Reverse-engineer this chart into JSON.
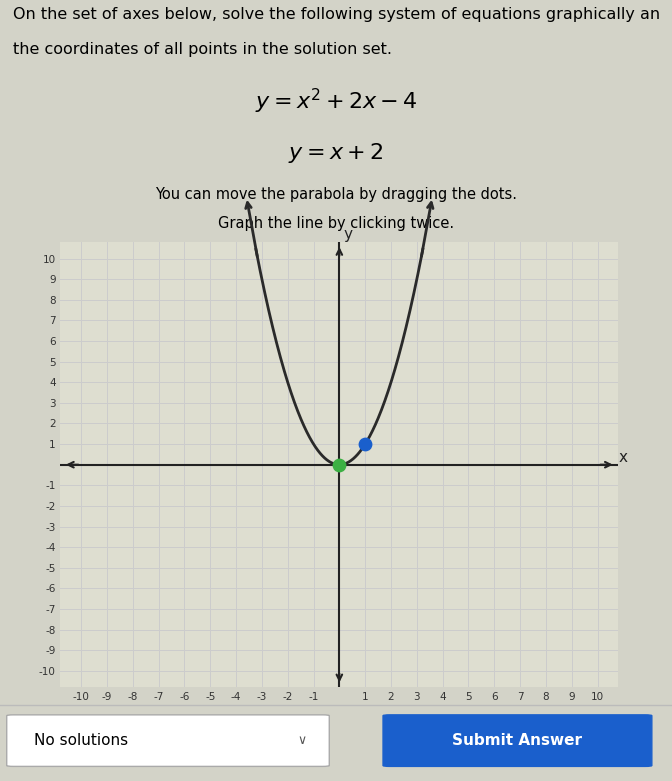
{
  "xlim": [
    -10,
    10
  ],
  "ylim": [
    -10,
    10
  ],
  "grid_color": "#cccccc",
  "bg_color": "#deded0",
  "parabola_color": "#2a2a2a",
  "green_dot": [
    0,
    0
  ],
  "blue_dot": [
    1,
    1
  ],
  "green_dot_color": "#3cb043",
  "blue_dot_color": "#1a5fcc",
  "dot_size": 80,
  "axis_color": "#222222",
  "no_solutions_text": "No solutions",
  "submit_text": "Submit Answer",
  "submit_bg": "#1a5fcc",
  "submit_text_color": "#ffffff",
  "outer_bg": "#d3d3c8",
  "line1_top": "On the set of axes below, solve the following system of equations graphically an",
  "line1_bot": "the coordinates of all points in the solution set.",
  "eq1": "$y = x^2 + 2x - 4$",
  "eq2": "$y = x + 2$",
  "instr1": "You can move the parabola by dragging the dots.",
  "instr2": "Graph the line by clicking twice."
}
